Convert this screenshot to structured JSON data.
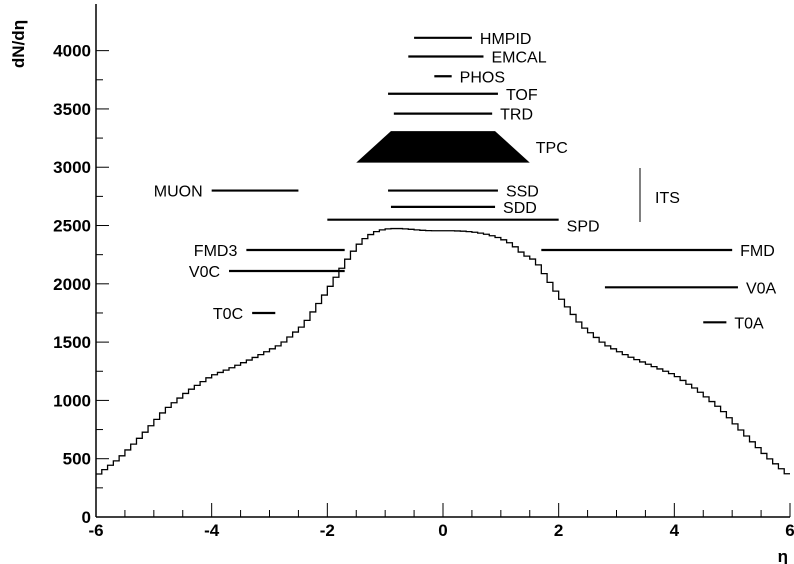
{
  "chart_data": {
    "type": "line",
    "title": "",
    "xlabel": "η",
    "ylabel": "dN/dη",
    "xlim": [
      -6,
      6
    ],
    "ylim": [
      0,
      4400
    ],
    "x_ticks": [
      -6,
      -4,
      -2,
      0,
      2,
      4,
      6
    ],
    "x_tick_labels": [
      "-6",
      "-4",
      "-2",
      "0",
      "2",
      "4",
      "6"
    ],
    "y_ticks": [
      0,
      500,
      1000,
      1500,
      2000,
      2500,
      3000,
      3500,
      4000
    ],
    "y_tick_labels": [
      "0",
      "500",
      "1000",
      "1500",
      "2000",
      "2500",
      "3000",
      "3500",
      "4000"
    ],
    "grid": false,
    "series": [
      {
        "style": "step-histogram",
        "color": "#000000",
        "x": [
          -6.0,
          -5.6,
          -5.2,
          -4.8,
          -4.4,
          -4.0,
          -3.6,
          -3.2,
          -2.8,
          -2.4,
          -2.0,
          -1.6,
          -1.4,
          -1.2,
          -1.0,
          -0.8,
          -0.6,
          -0.4,
          -0.2,
          0.0,
          0.2,
          0.4,
          0.6,
          0.8,
          1.0,
          1.2,
          1.4,
          1.6,
          2.0,
          2.4,
          2.8,
          3.2,
          3.6,
          4.0,
          4.4,
          4.8,
          5.2,
          5.6,
          6.0
        ],
        "y": [
          350,
          500,
          700,
          920,
          1080,
          1210,
          1290,
          1380,
          1480,
          1650,
          1940,
          2250,
          2370,
          2440,
          2470,
          2475,
          2470,
          2460,
          2455,
          2455,
          2455,
          2450,
          2440,
          2420,
          2390,
          2340,
          2250,
          2200,
          1900,
          1640,
          1480,
          1380,
          1300,
          1220,
          1090,
          930,
          720,
          520,
          350
        ]
      }
    ],
    "detectors": [
      {
        "name": "HMPID",
        "eta_min": -0.5,
        "eta_max": 0.5,
        "y": 4110
      },
      {
        "name": "EMCAL",
        "eta_min": -0.6,
        "eta_max": 0.7,
        "y": 3950
      },
      {
        "name": "PHOS",
        "eta_min": -0.15,
        "eta_max": 0.15,
        "y": 3780
      },
      {
        "name": "TOF",
        "eta_min": -0.95,
        "eta_max": 0.95,
        "y": 3630
      },
      {
        "name": "TRD",
        "eta_min": -0.85,
        "eta_max": 0.85,
        "y": 3460
      },
      {
        "name": "TPC",
        "shape": "trapezoid",
        "eta_inner": [
          -0.9,
          0.9
        ],
        "eta_outer": [
          -1.5,
          1.5
        ],
        "y_low": 3040,
        "y_high": 3310
      },
      {
        "name": "SSD",
        "eta_min": -0.95,
        "eta_max": 0.95,
        "y": 2800
      },
      {
        "name": "SDD",
        "eta_min": -0.9,
        "eta_max": 0.9,
        "y": 2660
      },
      {
        "name": "SPD",
        "eta_min": -2.0,
        "eta_max": 2.0,
        "y": 2550
      },
      {
        "name": "MUON",
        "eta_min": -4.0,
        "eta_max": -2.5,
        "y": 2800
      },
      {
        "name": "FMD3",
        "eta_min": -3.4,
        "eta_max": -1.7,
        "y": 2290
      },
      {
        "name": "V0C",
        "eta_min": -3.7,
        "eta_max": -1.7,
        "y": 2110
      },
      {
        "name": "T0C",
        "eta_min": -3.3,
        "eta_max": -2.9,
        "y": 1750
      },
      {
        "name": "FMD",
        "eta_min": 1.7,
        "eta_max": 5.0,
        "y": 2290
      },
      {
        "name": "V0A",
        "eta_min": 2.8,
        "eta_max": 5.1,
        "y": 1970
      },
      {
        "name": "T0A",
        "eta_min": 4.5,
        "eta_max": 4.9,
        "y": 1670
      }
    ],
    "group_label": "ITS"
  }
}
